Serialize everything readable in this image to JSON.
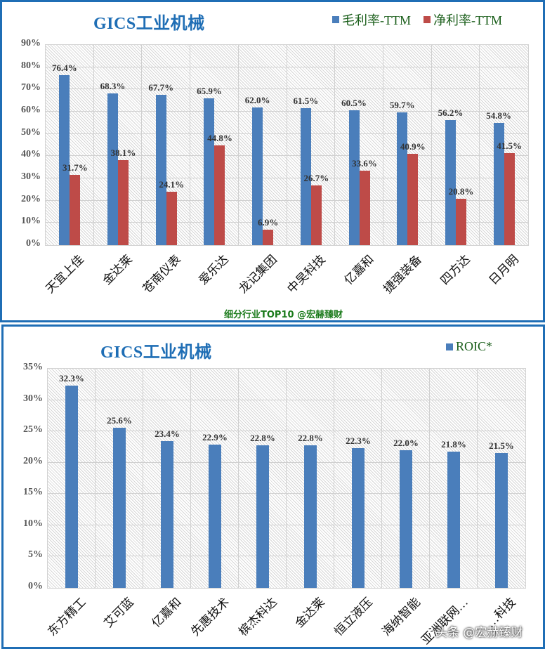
{
  "chart_data": [
    {
      "type": "bar",
      "title": "GICS工业机械",
      "categories": [
        "天宜上佳",
        "金达莱",
        "苍南仪表",
        "爱乐达",
        "龙记集团",
        "中旲科技",
        "亿嘉和",
        "捷强装备",
        "四方达",
        "日月明"
      ],
      "series": [
        {
          "name": "毛利率-TTM",
          "color": "#4a7ebb",
          "values": [
            76.4,
            68.3,
            67.7,
            65.9,
            62.0,
            61.5,
            60.5,
            59.7,
            56.2,
            54.8
          ],
          "labels": [
            "76.4%",
            "68.3%",
            "67.7%",
            "65.9%",
            "62.0%",
            "61.5%",
            "60.5%",
            "59.7%",
            "56.2%",
            "54.8%"
          ]
        },
        {
          "name": "净利率-TTM",
          "color": "#be4b48",
          "values": [
            31.7,
            38.1,
            24.1,
            44.8,
            6.9,
            26.7,
            33.6,
            40.9,
            20.8,
            41.5
          ],
          "labels": [
            "31.7%",
            "38.1%",
            "24.1%",
            "44.8%",
            "6.9%",
            "26.7%",
            "33.6%",
            "40.9%",
            "20.8%",
            "41.5%"
          ]
        }
      ],
      "ylim": [
        0,
        90
      ],
      "yticks": [
        "0%",
        "10%",
        "20%",
        "30%",
        "40%",
        "50%",
        "60%",
        "70%",
        "80%",
        "90%"
      ],
      "xlabel": "",
      "ylabel": "",
      "grid": true,
      "legend_position": "top-right",
      "footer": "细分行业TOP10 @宏赫臻财"
    },
    {
      "type": "bar",
      "title": "GICS工业机械",
      "categories": [
        "东方精工",
        "艾可蓝",
        "亿嘉和",
        "先惠技术",
        "槟杰科达",
        "金达莱",
        "恒立液压",
        "海纳智能",
        "亚洲联网…",
        "…科技"
      ],
      "series": [
        {
          "name": "ROIC*",
          "color": "#4a7ebb",
          "values": [
            32.3,
            25.6,
            23.4,
            22.9,
            22.8,
            22.8,
            22.3,
            22.0,
            21.8,
            21.5
          ],
          "labels": [
            "32.3%",
            "25.6%",
            "23.4%",
            "22.9%",
            "22.8%",
            "22.8%",
            "22.3%",
            "22.0%",
            "21.8%",
            "21.5%"
          ]
        }
      ],
      "ylim": [
        0,
        35
      ],
      "yticks": [
        "0%",
        "5%",
        "10%",
        "15%",
        "20%",
        "25%",
        "30%",
        "35%"
      ],
      "xlabel": "",
      "ylabel": "",
      "grid": true,
      "legend_position": "top-right"
    }
  ],
  "top": {
    "title": "GICS工业机械",
    "legend": [
      {
        "label": "毛利率-TTM",
        "color": "#4a7ebb"
      },
      {
        "label": "净利率-TTM",
        "color": "#be4b48"
      }
    ],
    "footer": "细分行业TOP10 @宏赫臻财"
  },
  "bottom": {
    "title": "GICS工业机械",
    "legend": [
      {
        "label": "ROIC*",
        "color": "#4a7ebb"
      }
    ]
  },
  "watermark": "头条 @宏赫臻财"
}
